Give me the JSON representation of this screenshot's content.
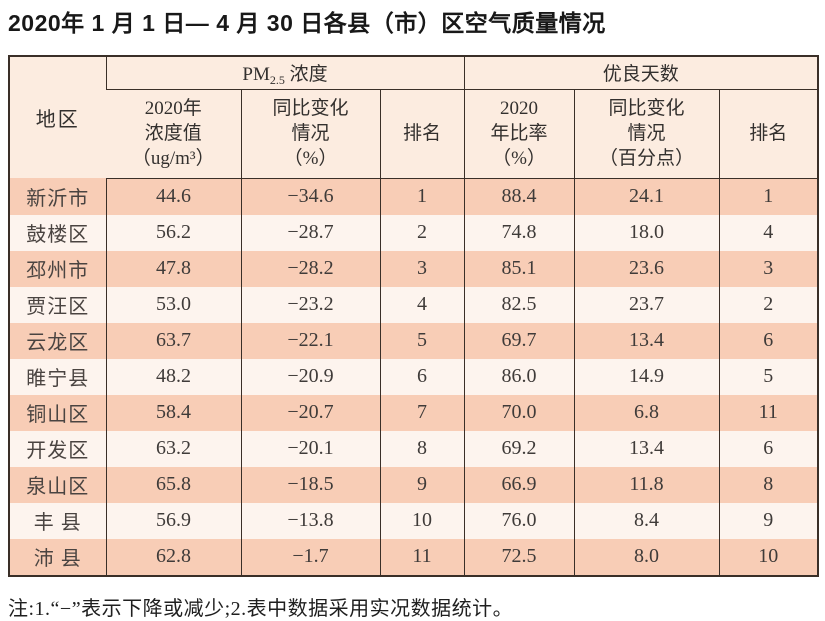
{
  "title": "2020年 1 月 1 日— 4 月 30 日各县（市）区空气质量情况",
  "table": {
    "region_header": "地区",
    "pm25_group": {
      "prefix": "PM",
      "sub": "2.5",
      "suffix": " 浓度"
    },
    "good_days_group": "优良天数",
    "subheaders": [
      "2020年\n浓度值\n（ug/m³）",
      "同比变化\n情况\n（%）",
      "排名",
      "2020\n年比率\n（%）",
      "同比变化\n情况\n（百分点）",
      "排名"
    ],
    "rows": [
      {
        "region": "新沂市",
        "values": [
          "44.6",
          "−34.6",
          "1",
          "88.4",
          "24.1",
          "1"
        ]
      },
      {
        "region": "鼓楼区",
        "values": [
          "56.2",
          "−28.7",
          "2",
          "74.8",
          "18.0",
          "4"
        ]
      },
      {
        "region": "邳州市",
        "values": [
          "47.8",
          "−28.2",
          "3",
          "85.1",
          "23.6",
          "3"
        ]
      },
      {
        "region": "贾汪区",
        "values": [
          "53.0",
          "−23.2",
          "4",
          "82.5",
          "23.7",
          "2"
        ]
      },
      {
        "region": "云龙区",
        "values": [
          "63.7",
          "−22.1",
          "5",
          "69.7",
          "13.4",
          "6"
        ]
      },
      {
        "region": "睢宁县",
        "values": [
          "48.2",
          "−20.9",
          "6",
          "86.0",
          "14.9",
          "5"
        ]
      },
      {
        "region": "铜山区",
        "values": [
          "58.4",
          "−20.7",
          "7",
          "70.0",
          "6.8",
          "11"
        ]
      },
      {
        "region": "开发区",
        "values": [
          "63.2",
          "−20.1",
          "8",
          "69.2",
          "13.4",
          "6"
        ]
      },
      {
        "region": "泉山区",
        "values": [
          "65.8",
          "−18.5",
          "9",
          "66.9",
          "11.8",
          "8"
        ]
      },
      {
        "region": "丰 县",
        "values": [
          "56.9",
          "−13.8",
          "10",
          "76.0",
          "8.4",
          "9"
        ]
      },
      {
        "region": "沛 县",
        "values": [
          "62.8",
          "−1.7",
          "11",
          "72.5",
          "8.0",
          "10"
        ]
      }
    ]
  },
  "note": "注:1.“−”表示下降或减少;2.表中数据采用实况数据统计。",
  "colors": {
    "row_odd_bg": "#f8cdb6",
    "row_even_bg": "#fdf4ee",
    "header_bg": "#fcece0",
    "border": "#3a2f28"
  }
}
